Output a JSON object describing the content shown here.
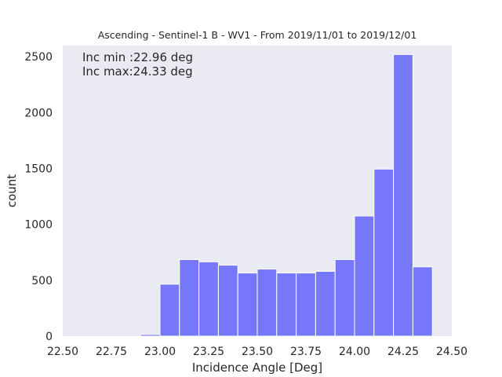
{
  "chart_data": {
    "type": "bar",
    "title": "Ascending - Sentinel-1 B - WV1 - From 2019/11/01 to 2019/12/01",
    "xlabel": "Incidence Angle [Deg]",
    "ylabel": "count",
    "xlim": [
      22.5,
      24.5
    ],
    "ylim": [
      0,
      2600
    ],
    "xticks": [
      "22.50",
      "22.75",
      "23.00",
      "23.25",
      "23.50",
      "23.75",
      "24.00",
      "24.25",
      "24.50"
    ],
    "yticks": [
      "0",
      "500",
      "1000",
      "1500",
      "2000",
      "2500"
    ],
    "grid": false,
    "bar_color": "#7777fa",
    "bin_edges": [
      22.9,
      23.0,
      23.1,
      23.2,
      23.3,
      23.4,
      23.5,
      23.6,
      23.7,
      23.8,
      23.9,
      24.0,
      24.1,
      24.2,
      24.3,
      24.4
    ],
    "values": [
      15,
      465,
      685,
      665,
      635,
      565,
      600,
      565,
      565,
      580,
      685,
      1075,
      1495,
      2520,
      620
    ],
    "annotations": [
      "Inc min :22.96 deg",
      "Inc max:24.33 deg"
    ]
  }
}
